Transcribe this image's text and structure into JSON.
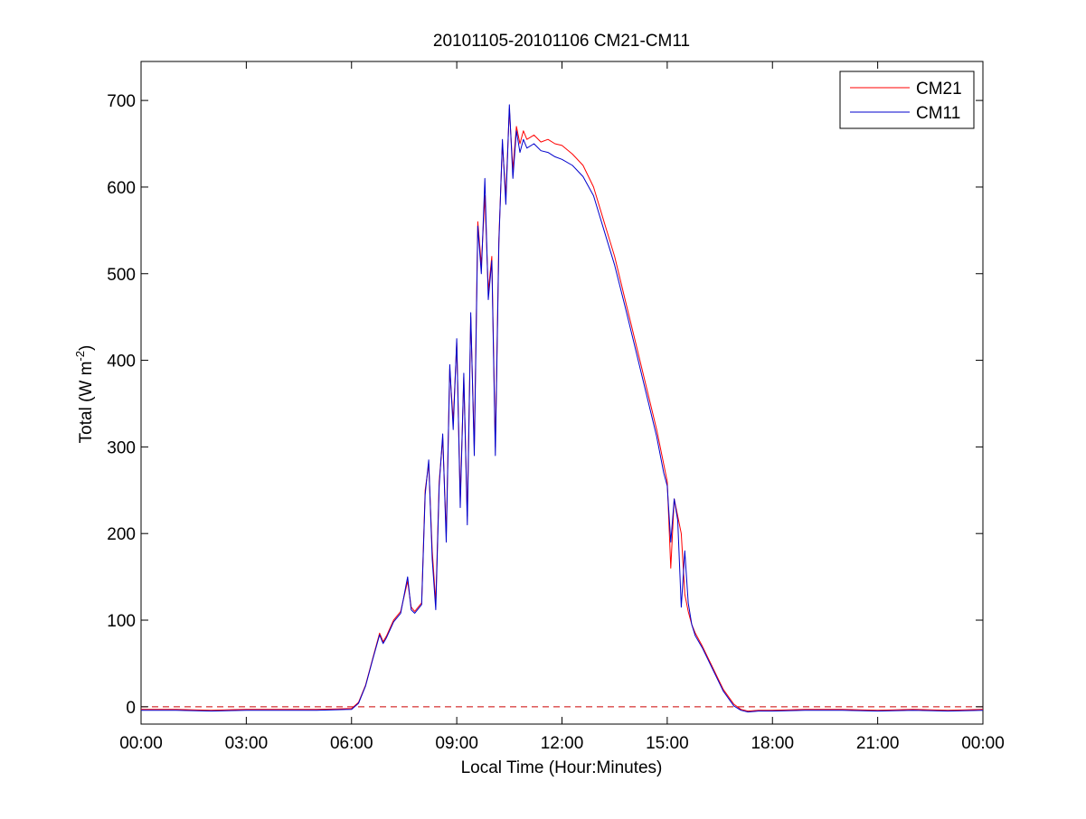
{
  "chart_data": {
    "type": "line",
    "title": "20101105-20101106 CM21-CM11",
    "xlabel": "Local Time (Hour:Minutes)",
    "ylabel": "Total (W m",
    "ylabel_sup": "-2",
    "ylabel_close": ")",
    "x_unit": "hours",
    "xlim": [
      0,
      24
    ],
    "ylim": [
      -20,
      745
    ],
    "xticks": [
      0,
      3,
      6,
      9,
      12,
      15,
      18,
      21,
      24
    ],
    "xtick_labels": [
      "00:00",
      "03:00",
      "06:00",
      "09:00",
      "12:00",
      "15:00",
      "18:00",
      "21:00",
      "00:00"
    ],
    "yticks": [
      0,
      100,
      200,
      300,
      400,
      500,
      600,
      700
    ],
    "ytick_labels": [
      "0",
      "100",
      "200",
      "300",
      "400",
      "500",
      "600",
      "700"
    ],
    "grid": false,
    "legend_position": "top-right",
    "reference_line": {
      "y": 0,
      "style": "dashed",
      "color": "#cc0000"
    },
    "series": [
      {
        "name": "CM21",
        "color": "#ff0000",
        "x": [
          0,
          1,
          2,
          3,
          4,
          5,
          6.0,
          6.2,
          6.4,
          6.6,
          6.8,
          6.9,
          7.0,
          7.2,
          7.4,
          7.6,
          7.7,
          7.8,
          8.0,
          8.1,
          8.2,
          8.3,
          8.4,
          8.5,
          8.6,
          8.7,
          8.8,
          8.9,
          9.0,
          9.1,
          9.2,
          9.3,
          9.4,
          9.5,
          9.6,
          9.7,
          9.8,
          9.9,
          10.0,
          10.1,
          10.2,
          10.3,
          10.4,
          10.5,
          10.6,
          10.7,
          10.8,
          10.9,
          11.0,
          11.2,
          11.4,
          11.6,
          11.8,
          12.0,
          12.3,
          12.6,
          12.9,
          13.2,
          13.5,
          13.8,
          14.1,
          14.4,
          14.7,
          14.9,
          15.0,
          15.1,
          15.2,
          15.3,
          15.4,
          15.5,
          15.6,
          15.7,
          15.8,
          16.0,
          16.3,
          16.6,
          16.9,
          17.1,
          17.3,
          17.6,
          18,
          19,
          20,
          21,
          22,
          23,
          24
        ],
        "values": [
          -3,
          -3,
          -4,
          -3,
          -3,
          -3,
          -2,
          5,
          25,
          55,
          85,
          75,
          82,
          100,
          110,
          145,
          115,
          110,
          120,
          250,
          280,
          180,
          120,
          260,
          310,
          200,
          390,
          330,
          420,
          240,
          380,
          220,
          450,
          300,
          560,
          510,
          590,
          480,
          520,
          300,
          540,
          650,
          590,
          690,
          620,
          670,
          650,
          665,
          655,
          660,
          652,
          655,
          650,
          648,
          638,
          625,
          600,
          560,
          520,
          470,
          420,
          370,
          320,
          280,
          260,
          160,
          240,
          220,
          200,
          130,
          110,
          95,
          85,
          70,
          45,
          20,
          3,
          -3,
          -5,
          -4,
          -4,
          -3,
          -3,
          -4,
          -3,
          -4,
          -3
        ]
      },
      {
        "name": "CM11",
        "color": "#0000cc",
        "x": [
          0,
          1,
          2,
          3,
          4,
          5,
          6.0,
          6.2,
          6.4,
          6.6,
          6.8,
          6.9,
          7.0,
          7.2,
          7.4,
          7.6,
          7.7,
          7.8,
          8.0,
          8.1,
          8.2,
          8.3,
          8.4,
          8.5,
          8.6,
          8.7,
          8.8,
          8.9,
          9.0,
          9.1,
          9.2,
          9.3,
          9.4,
          9.5,
          9.6,
          9.7,
          9.8,
          9.9,
          10.0,
          10.1,
          10.2,
          10.3,
          10.4,
          10.5,
          10.6,
          10.7,
          10.8,
          10.9,
          11.0,
          11.2,
          11.4,
          11.6,
          11.8,
          12.0,
          12.3,
          12.6,
          12.9,
          13.2,
          13.5,
          13.8,
          14.1,
          14.4,
          14.7,
          14.9,
          15.0,
          15.1,
          15.2,
          15.3,
          15.4,
          15.5,
          15.6,
          15.7,
          15.8,
          16.0,
          16.3,
          16.6,
          16.9,
          17.1,
          17.3,
          17.6,
          18,
          19,
          20,
          21,
          22,
          23,
          24
        ],
        "values": [
          -4,
          -4,
          -5,
          -4,
          -4,
          -4,
          -3,
          4,
          24,
          54,
          83,
          73,
          80,
          98,
          108,
          150,
          112,
          108,
          118,
          245,
          285,
          170,
          112,
          255,
          315,
          190,
          395,
          320,
          425,
          230,
          385,
          210,
          455,
          290,
          555,
          500,
          610,
          470,
          515,
          290,
          535,
          655,
          580,
          695,
          610,
          665,
          640,
          655,
          645,
          650,
          642,
          640,
          635,
          632,
          625,
          612,
          590,
          550,
          510,
          462,
          412,
          362,
          312,
          270,
          255,
          190,
          240,
          215,
          115,
          180,
          120,
          95,
          82,
          68,
          43,
          18,
          1,
          -4,
          -6,
          -5,
          -5,
          -4,
          -4,
          -5,
          -4,
          -5,
          -4
        ]
      }
    ]
  }
}
